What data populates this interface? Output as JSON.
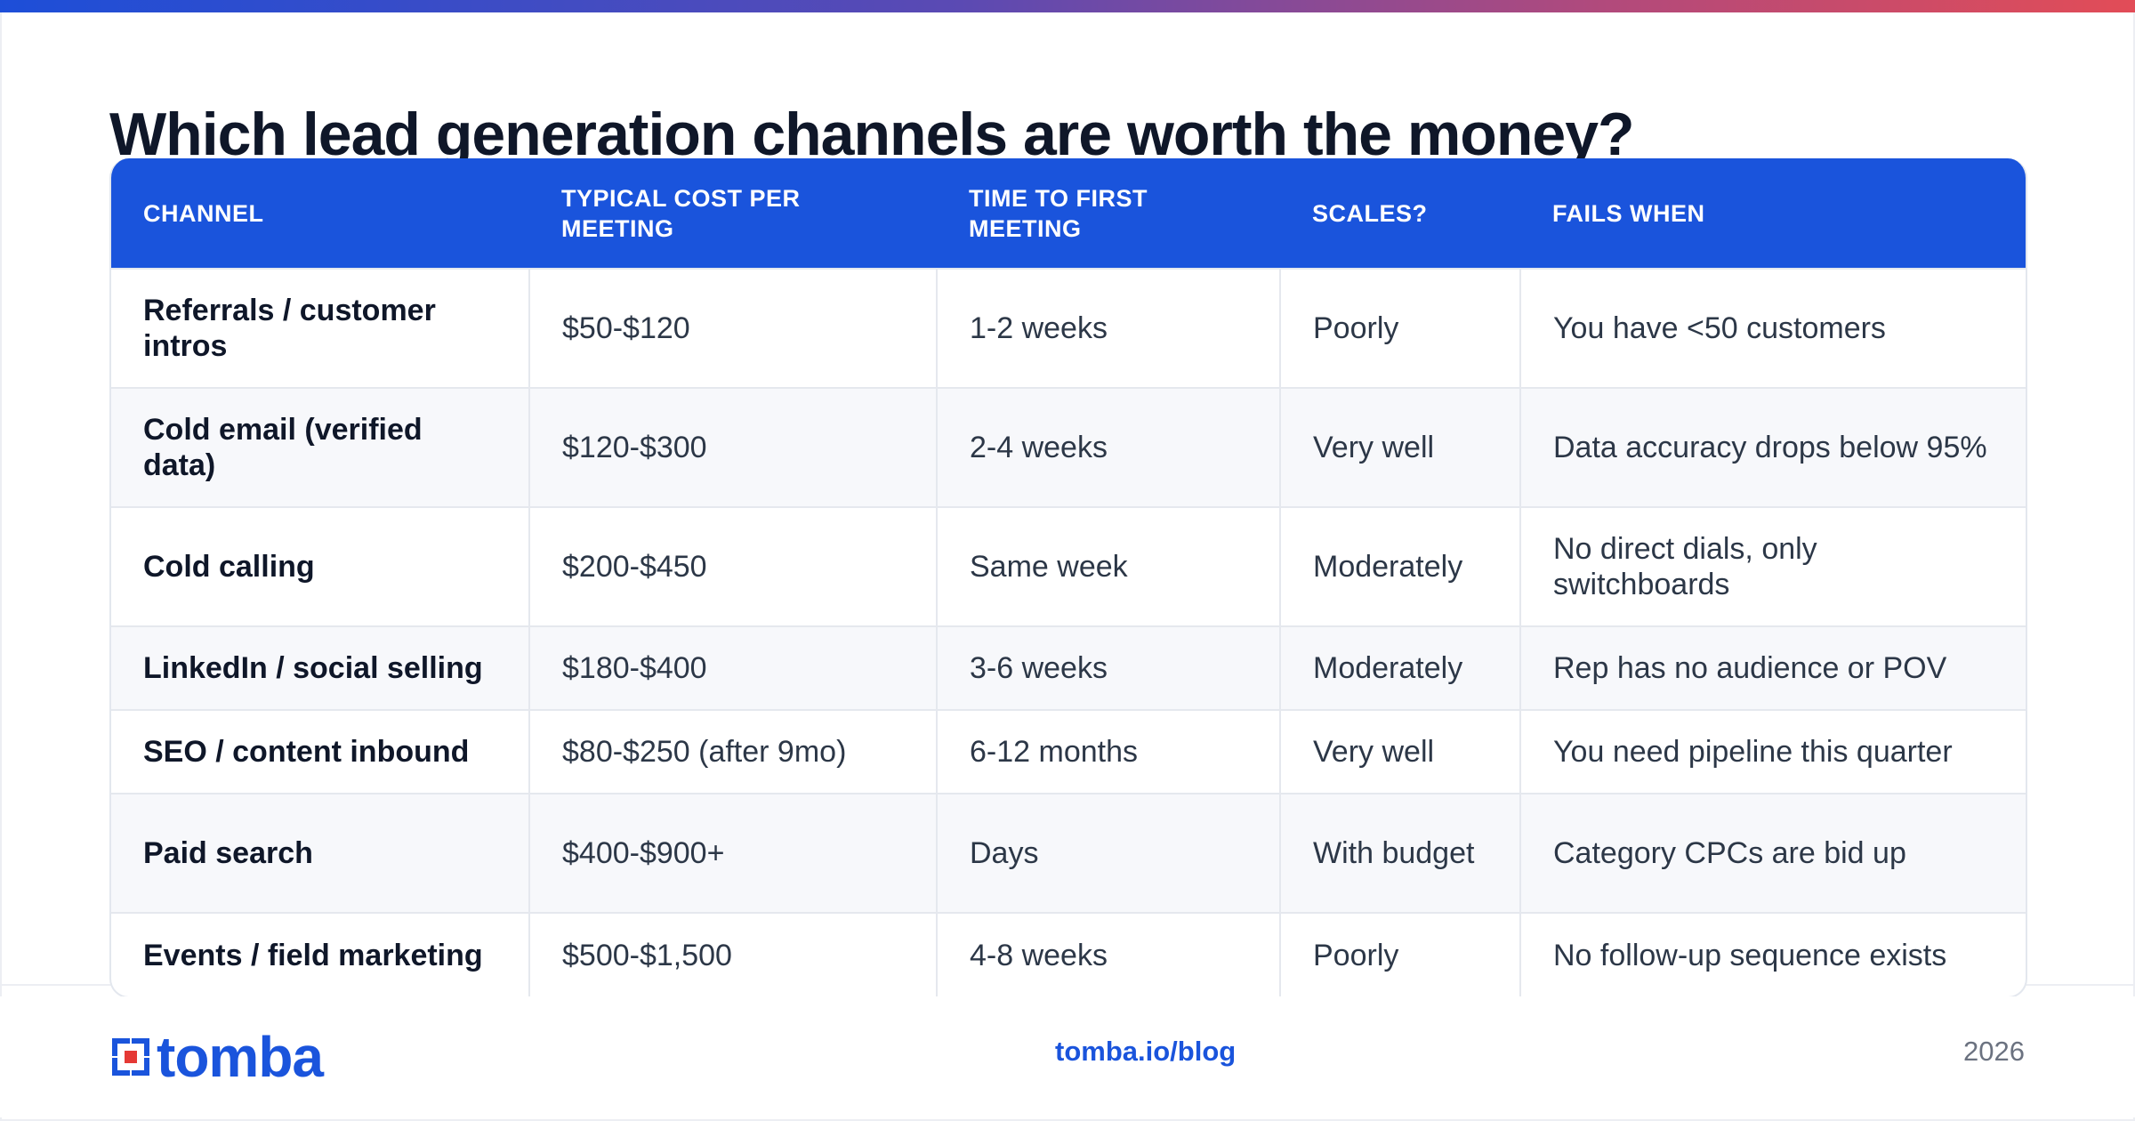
{
  "title": "Which lead generation channels are worth the money?",
  "table": {
    "headers": [
      "CHANNEL",
      "TYPICAL COST PER MEETING",
      "TIME TO FIRST MEETING",
      "SCALES?",
      "FAILS WHEN"
    ],
    "rows": [
      [
        "Referrals / customer intros",
        "$50-$120",
        "1-2 weeks",
        "Poorly",
        "You have <50 customers"
      ],
      [
        "Cold email (verified data)",
        "$120-$300",
        "2-4 weeks",
        "Very well",
        "Data accuracy drops below 95%"
      ],
      [
        "Cold calling",
        "$200-$450",
        "Same week",
        "Moderately",
        "No direct dials, only switchboards"
      ],
      [
        "LinkedIn / social selling",
        "$180-$400",
        "3-6 weeks",
        "Moderately",
        "Rep has no audience or POV"
      ],
      [
        "SEO / content inbound",
        "$80-$250 (after 9mo)",
        "6-12 months",
        "Very well",
        "You need pipeline this quarter"
      ],
      [
        "Paid search",
        "$400-$900+",
        "Days",
        "With budget",
        "Category CPCs are bid up"
      ],
      [
        "Events / field marketing",
        "$500-$1,500",
        "4-8 weeks",
        "Poorly",
        "No follow-up sequence exists"
      ]
    ]
  },
  "footer": {
    "logo_text": "tomba",
    "logo_icon": "tomba-logo-icon",
    "url": "tomba.io/blog",
    "year": "2026"
  },
  "colors": {
    "accent": "#1a54dc",
    "gradient_start": "#1d4ed8",
    "gradient_end": "#e24c57",
    "logo_red": "#e53935"
  }
}
